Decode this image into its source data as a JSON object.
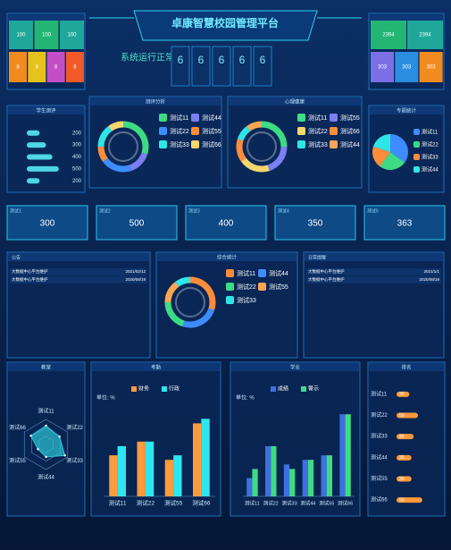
{
  "header": {
    "title": "卓康智慧校园管理平台",
    "status": "系统运行正常",
    "digits": [
      6,
      6,
      6,
      6,
      6
    ]
  },
  "tiles_left": [
    {
      "value": 100,
      "color": "#1fa89a"
    },
    {
      "value": 100,
      "color": "#22b573"
    },
    {
      "value": 100,
      "color": "#1fa89a"
    },
    {
      "value": 8,
      "color": "#f28b1f"
    },
    {
      "value": 8,
      "color": "#e8c21c"
    },
    {
      "value": 8,
      "color": "#c44dc8"
    },
    {
      "value": 8,
      "color": "#f05a28"
    }
  ],
  "tiles_right": [
    {
      "value": 2394,
      "color": "#22b573"
    },
    {
      "value": 2394,
      "color": "#1fa89a"
    },
    {
      "value": 303,
      "color": "#7b6fe6"
    },
    {
      "value": 303,
      "color": "#2b8de0"
    },
    {
      "value": 303,
      "color": "#f28b1f"
    }
  ],
  "stats": [
    {
      "label": "测试1",
      "value": 300
    },
    {
      "label": "测试2",
      "value": 500
    },
    {
      "label": "测试3",
      "value": 400
    },
    {
      "label": "测试4",
      "value": 350
    },
    {
      "label": "测试5",
      "value": 363
    }
  ],
  "notices": {
    "title": "公告",
    "rows": [
      {
        "text": "大数据中心平台维护",
        "date": "2021/02/12"
      },
      {
        "text": "大数据中心平台维护",
        "date": "2020/08/19"
      }
    ]
  },
  "reminders": {
    "title": "日常提醒",
    "rows": [
      {
        "text": "大数据中心平台维护",
        "date": "2021/1/1"
      },
      {
        "text": "大数据中心平台维护",
        "date": "2020/08/19"
      }
    ]
  },
  "chart_data": [
    {
      "type": "hbar",
      "title": "学生测评",
      "values": [
        200,
        300,
        400,
        500,
        200
      ],
      "xlim": [
        0,
        600
      ],
      "color": "#4fd6e6"
    },
    {
      "type": "donut",
      "title": "测评分析",
      "categories": [
        "测试11",
        "测试44",
        "测试22",
        "测试55",
        "测试33",
        "测试66"
      ],
      "values": [
        30,
        15,
        20,
        10,
        15,
        10
      ],
      "colors": [
        "#3ddc84",
        "#7b7ff0",
        "#3f8cff",
        "#ff8c3a",
        "#2ee6e6",
        "#f5d76e"
      ]
    },
    {
      "type": "donut",
      "title": "心理健康",
      "categories": [
        "测试11",
        "测试55",
        "测试22",
        "测试66",
        "测试33",
        "测试44"
      ],
      "values": [
        25,
        20,
        20,
        15,
        10,
        10
      ],
      "colors": [
        "#3ddc84",
        "#7b7ff0",
        "#f5d76e",
        "#ff8c3a",
        "#2ee6e6",
        "#ffa552"
      ]
    },
    {
      "type": "pie",
      "title": "专题统计",
      "categories": [
        "测试11",
        "测试22",
        "测试33",
        "测试44"
      ],
      "values": [
        35,
        25,
        20,
        20
      ],
      "colors": [
        "#3f8cff",
        "#3ddc84",
        "#ff8c3a",
        "#2ee6e6"
      ]
    },
    {
      "type": "donut",
      "title": "综合统计",
      "categories": [
        "测试11",
        "测试44",
        "测试22",
        "测试55",
        "测试33"
      ],
      "values": [
        30,
        25,
        20,
        15,
        10
      ],
      "colors": [
        "#ff8c3a",
        "#3f8cff",
        "#3ddc84",
        "#ffa552",
        "#2ee6e6"
      ]
    },
    {
      "type": "radar",
      "title": "教室",
      "categories": [
        "测试11",
        "测试22",
        "测试33",
        "测试44",
        "测试55",
        "测试66"
      ],
      "values": [
        30,
        25,
        35,
        20,
        15,
        28
      ],
      "rlim": [
        0,
        40
      ],
      "color": "#2ec4d6"
    },
    {
      "type": "bar",
      "title": "考勤",
      "ylabel": "单位: %",
      "categories": [
        "测试11",
        "测试22",
        "测试55",
        "测试66"
      ],
      "ylim": [
        0,
        100
      ],
      "series": [
        {
          "name": "财务",
          "color": "#ff9a3c",
          "values": [
            45,
            60,
            40,
            80
          ]
        },
        {
          "name": "行政",
          "color": "#2ee6f0",
          "values": [
            55,
            60,
            45,
            85
          ]
        }
      ]
    },
    {
      "type": "bar",
      "title": "学业",
      "ylabel": "单位: %",
      "categories": [
        "测试11",
        "测试22",
        "测试33",
        "测试44",
        "测试55",
        "测试66"
      ],
      "ylim": [
        0,
        100
      ],
      "series": [
        {
          "name": "成绩",
          "color": "#3f6fe0",
          "values": [
            20,
            55,
            35,
            40,
            45,
            90
          ]
        },
        {
          "name": "警示",
          "color": "#3ddc84",
          "values": [
            30,
            55,
            30,
            40,
            45,
            90
          ]
        }
      ]
    },
    {
      "type": "hbar",
      "title": "排名",
      "categories": [
        "测试11",
        "测试22",
        "测试33",
        "测试44",
        "测试55",
        "测试66"
      ],
      "values": [
        30,
        50,
        40,
        35,
        35,
        60
      ],
      "xlim": [
        0,
        100
      ],
      "color": "#ff9a3c"
    }
  ]
}
